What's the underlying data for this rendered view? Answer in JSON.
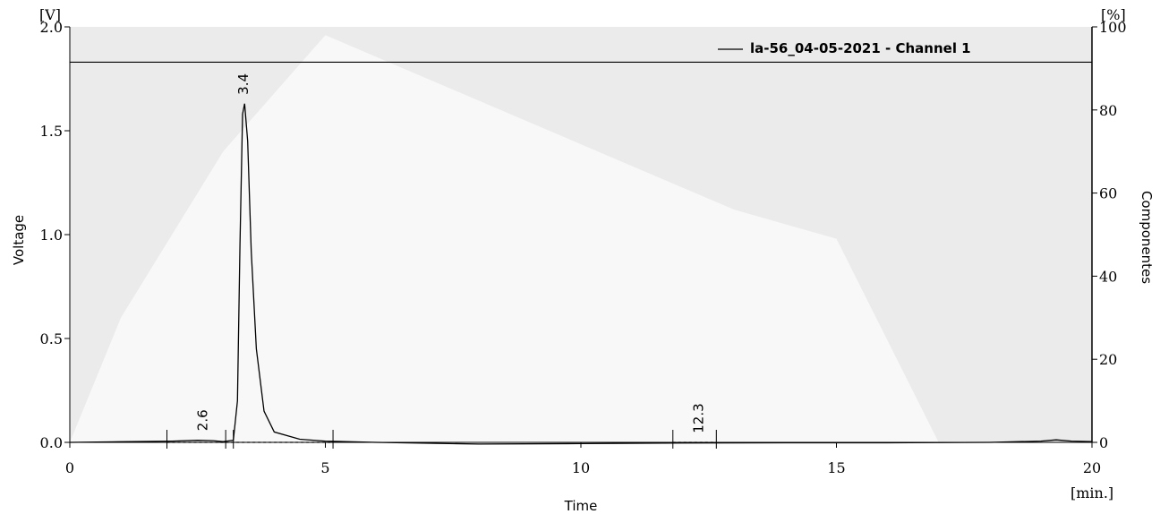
{
  "chart_data": {
    "type": "line",
    "legend": "la-56_04-05-2021 -  Channel 1",
    "legend_position": "top-right",
    "xlabel": "Time",
    "xunit": "[min.]",
    "ylabel": "Voltage",
    "yunit": "[V]",
    "y2label": "Componentes",
    "y2unit": "[%]",
    "xlim": [
      0,
      20
    ],
    "ylim": [
      0,
      2.0
    ],
    "y2lim": [
      0,
      100
    ],
    "xticks": [
      0,
      5,
      10,
      15,
      20
    ],
    "xtick_labels": [
      "0",
      "5",
      "10",
      "15",
      "20"
    ],
    "yticks": [
      0.0,
      0.5,
      1.0,
      1.5,
      2.0
    ],
    "ytick_labels": [
      "0.0",
      "0.5",
      "1.0",
      "1.5",
      "2.0"
    ],
    "y2ticks": [
      0,
      20,
      40,
      60,
      80,
      100
    ],
    "y2tick_labels": [
      "0",
      "20",
      "40",
      "60",
      "80",
      "100"
    ],
    "hline_y": 1.83,
    "series": [
      {
        "name": "la-56_04-05-2021 -  Channel 1",
        "axis": "left",
        "x": [
          0,
          1,
          2,
          2.5,
          2.8,
          3.0,
          3.2,
          3.28,
          3.33,
          3.38,
          3.42,
          3.48,
          3.55,
          3.65,
          3.8,
          4.0,
          4.5,
          5,
          6,
          8,
          10,
          12,
          14,
          16,
          18,
          19,
          19.3,
          19.6,
          20
        ],
        "y": [
          0.0,
          0.003,
          0.006,
          0.01,
          0.008,
          0.004,
          0.01,
          0.2,
          0.95,
          1.58,
          1.63,
          1.45,
          0.92,
          0.45,
          0.15,
          0.05,
          0.015,
          0.006,
          0.0,
          -0.008,
          -0.006,
          -0.003,
          -0.002,
          -0.002,
          0.0,
          0.006,
          0.012,
          0.006,
          0.004
        ]
      },
      {
        "name": "Componentes",
        "axis": "right",
        "type": "area",
        "x": [
          0,
          1,
          3,
          5,
          13,
          15,
          17,
          20
        ],
        "y": [
          0,
          30,
          70,
          98,
          56,
          49,
          0,
          0
        ]
      }
    ],
    "peaks": [
      {
        "label": "2.6",
        "x": 2.6,
        "y": 0.012
      },
      {
        "label": "3.4",
        "x": 3.4,
        "y": 1.63
      },
      {
        "label": "12.3",
        "x": 12.3,
        "y": 0.001
      }
    ],
    "integration_markers_x": [
      1.9,
      3.2,
      3.05,
      5.15,
      11.8,
      12.65
    ]
  }
}
